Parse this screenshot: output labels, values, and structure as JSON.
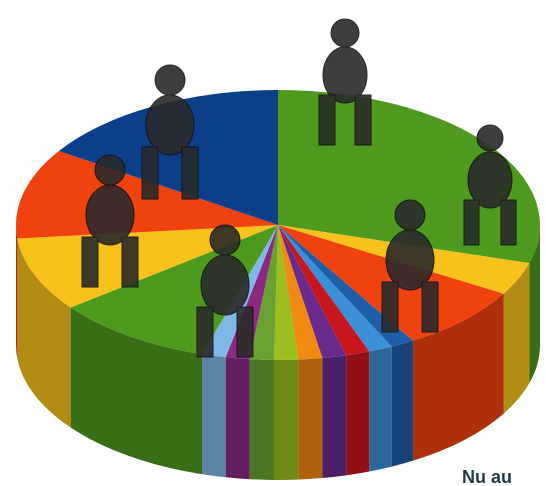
{
  "chart_data": {
    "type": "pie",
    "categories": [
      null,
      null,
      null,
      null,
      null,
      null,
      null,
      null,
      null,
      null,
      null,
      null,
      null,
      null,
      null,
      null
    ],
    "values": [
      30,
      4,
      8,
      1.5,
      1.5,
      1.5,
      1.5,
      1.5,
      1.5,
      1.5,
      1.5,
      1.5,
      10,
      9,
      11,
      16
    ],
    "colors": [
      "#4e9a1e",
      "#f7c21b",
      "#f0420f",
      "#1f5fa8",
      "#3b8fd6",
      "#c8161d",
      "#6a2a8c",
      "#f08a12",
      "#9bbf1f",
      "#6aa232",
      "#8b2a82",
      "#7fb8e6",
      "#4e9a1e",
      "#f7c21b",
      "#f0420f",
      "#0b3f8a"
    ],
    "annotation": "Nu au"
  }
}
